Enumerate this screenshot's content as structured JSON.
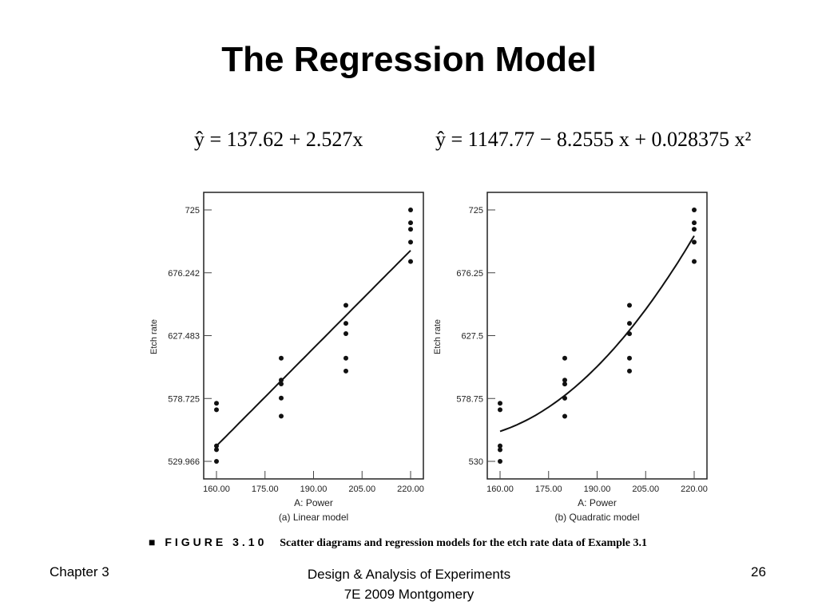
{
  "slide": {
    "title": "The Regression Model",
    "equation_linear": "ŷ = 137.62 + 2.527x",
    "equation_quadratic": "ŷ = 1147.77 − 8.2555 x + 0.028375 x²",
    "caption_figure": "■ FIGURE 3.10",
    "caption_text": "Scatter diagrams and regression models for the etch rate data of Example 3.1",
    "footer_left": "Chapter 3",
    "footer_center_line1": "Design & Analysis of Experiments",
    "footer_center_line2": "7E 2009 Montgomery",
    "footer_right": "26"
  },
  "chart_data": [
    {
      "type": "scatter",
      "caption": "(a) Linear model",
      "xlabel": "A: Power",
      "ylabel": "Etch rate",
      "xlim": [
        160,
        220
      ],
      "ylim": [
        529.966,
        725
      ],
      "xticks": [
        "160.00",
        "175.00",
        "190.00",
        "205.00",
        "220.00"
      ],
      "yticks": [
        "529.966",
        "578.725",
        "627.483",
        "676.242",
        "725"
      ],
      "x": [
        160,
        160,
        160,
        160,
        160,
        180,
        180,
        180,
        180,
        180,
        200,
        200,
        200,
        200,
        200,
        220,
        220,
        220,
        220,
        220
      ],
      "y": [
        575,
        542,
        530,
        539,
        570,
        565,
        593,
        590,
        579,
        610,
        600,
        651,
        610,
        637,
        629,
        725,
        700,
        715,
        685,
        710
      ],
      "fit": {
        "model": "linear",
        "coefficients": [
          137.62,
          2.527
        ]
      }
    },
    {
      "type": "scatter",
      "caption": "(b) Quadratic model",
      "xlabel": "A: Power",
      "ylabel": "Etch rate",
      "xlim": [
        160,
        220
      ],
      "ylim": [
        530,
        725
      ],
      "xticks": [
        "160.00",
        "175.00",
        "190.00",
        "205.00",
        "220.00"
      ],
      "yticks": [
        "530",
        "578.75",
        "627.5",
        "676.25",
        "725"
      ],
      "x": [
        160,
        160,
        160,
        160,
        160,
        180,
        180,
        180,
        180,
        180,
        200,
        200,
        200,
        200,
        200,
        220,
        220,
        220,
        220,
        220
      ],
      "y": [
        575,
        542,
        530,
        539,
        570,
        565,
        593,
        590,
        579,
        610,
        600,
        651,
        610,
        637,
        629,
        725,
        700,
        715,
        685,
        710
      ],
      "fit": {
        "model": "quadratic",
        "coefficients": [
          1147.77,
          -8.2555,
          0.028375
        ]
      }
    }
  ]
}
